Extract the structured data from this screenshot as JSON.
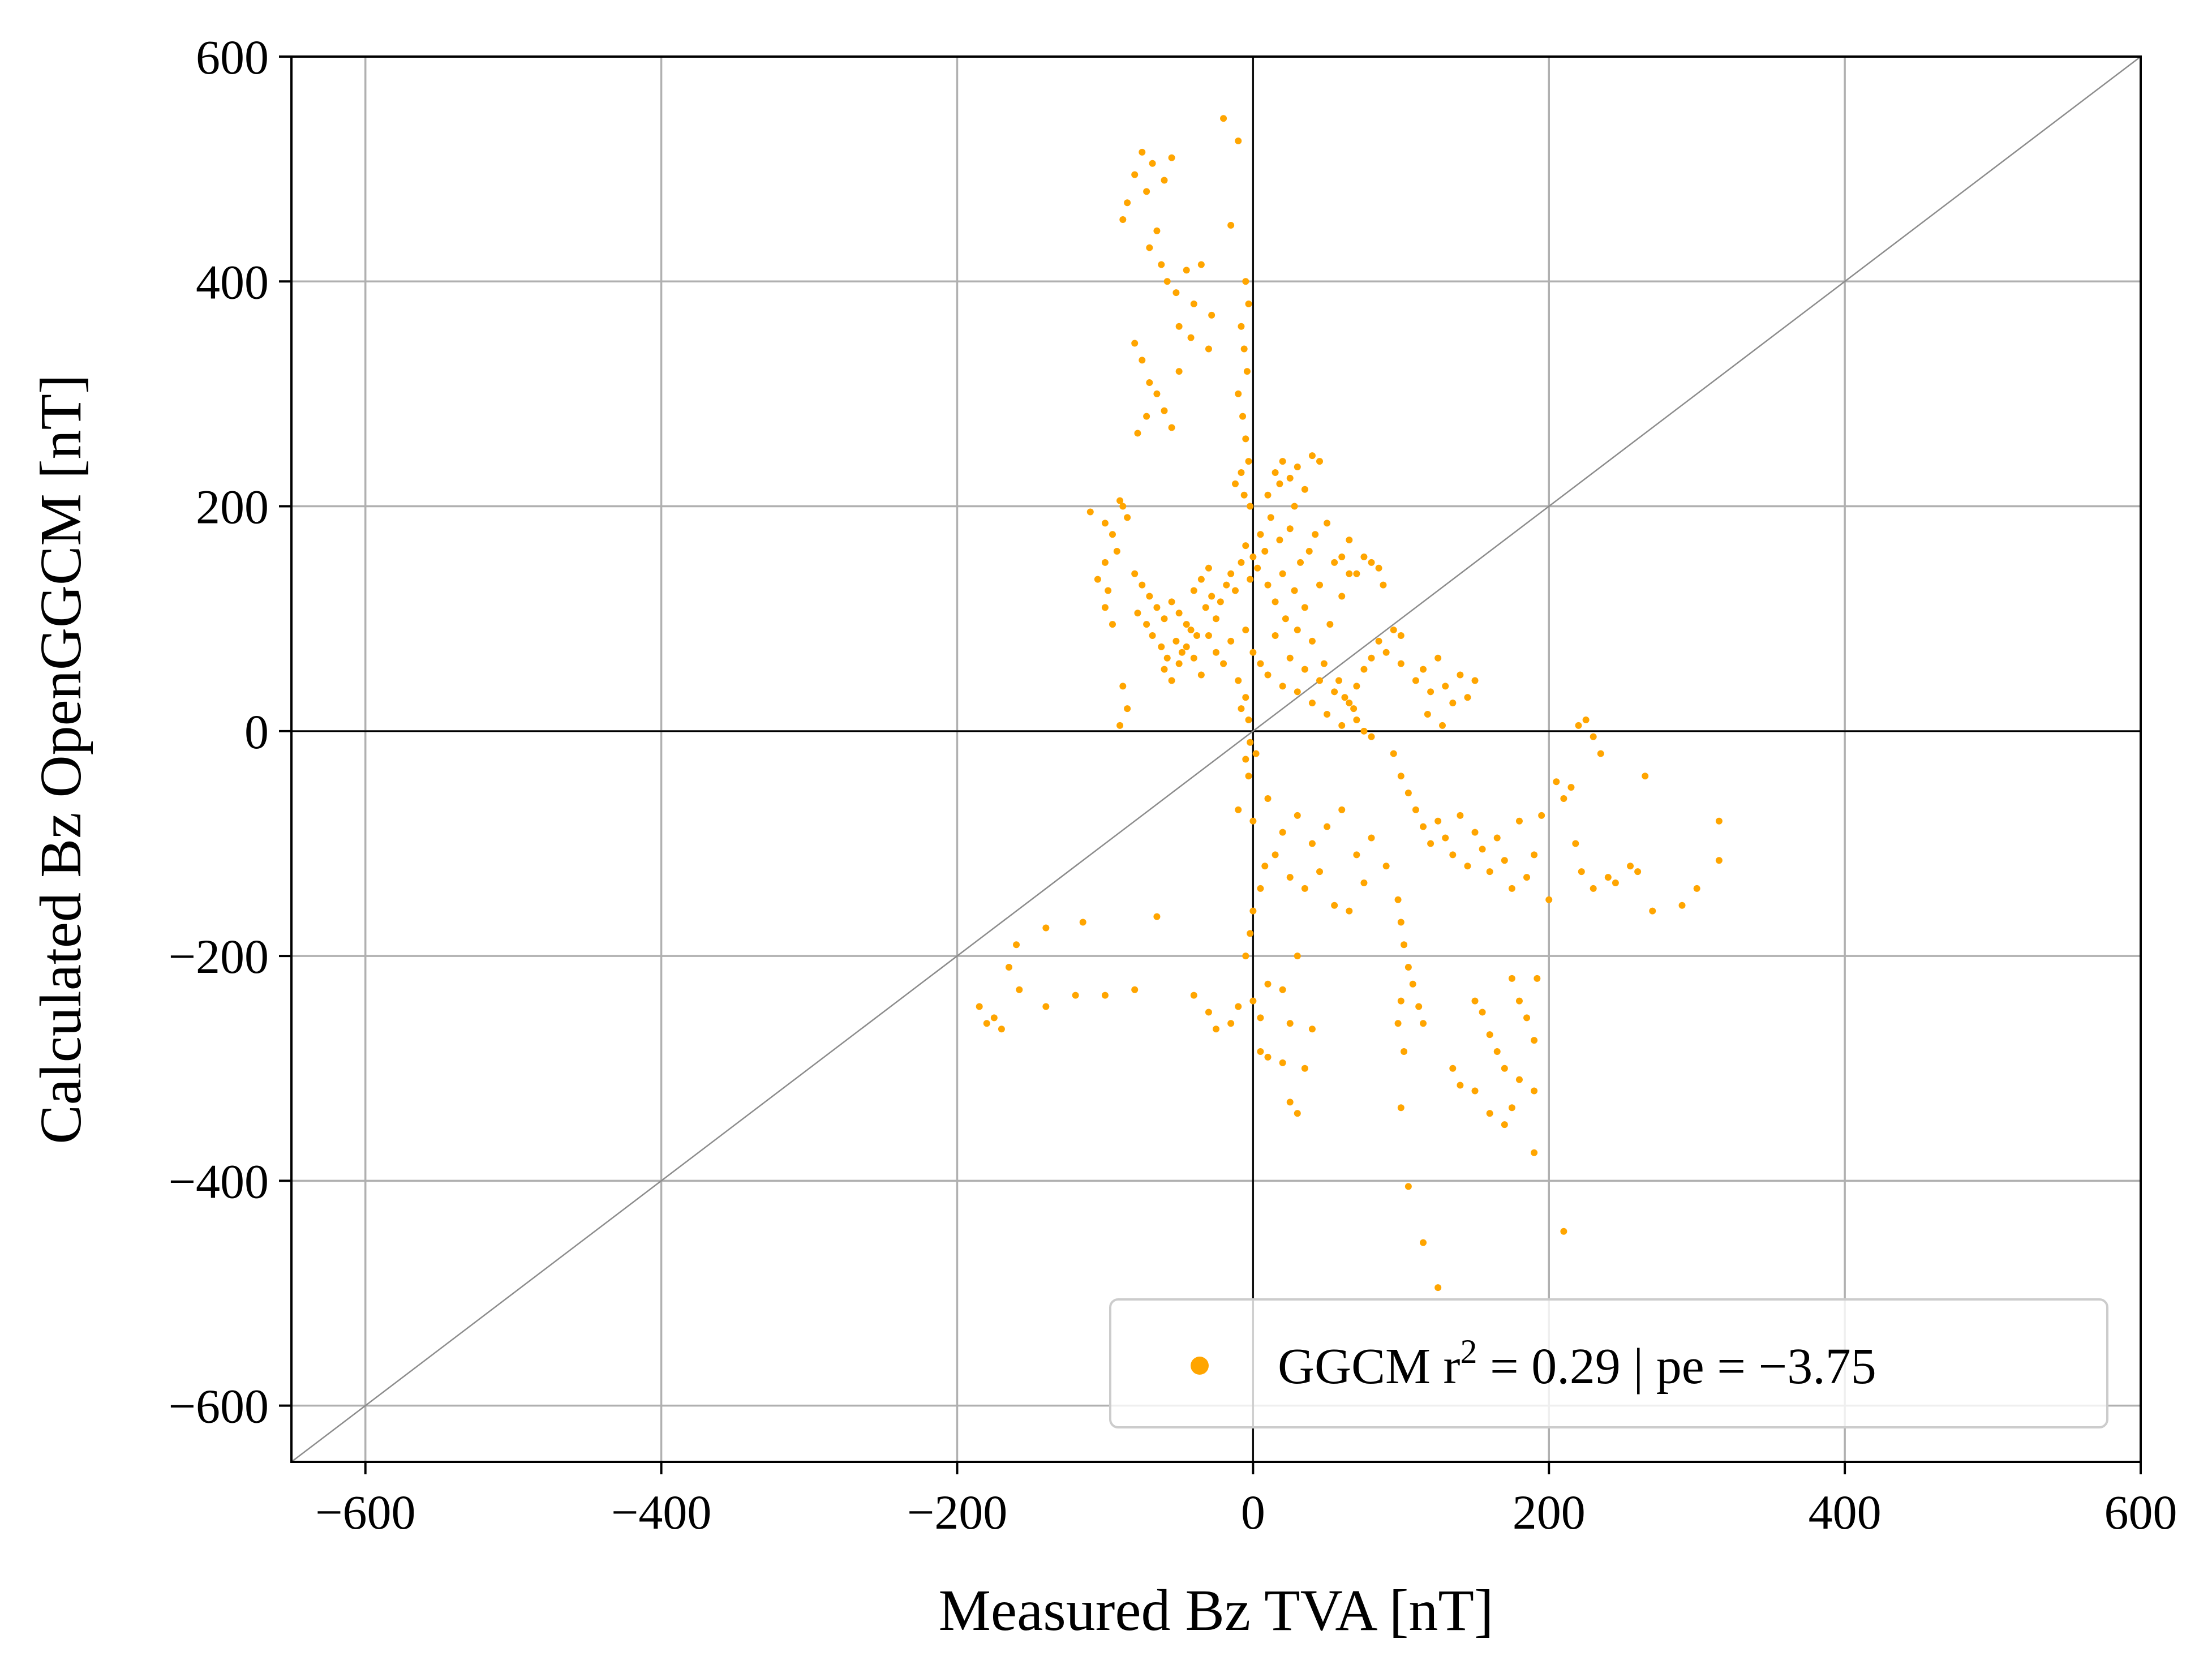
{
  "chart_data": {
    "type": "scatter",
    "title": "",
    "xlabel": "Measured Bz TVA [nT]",
    "ylabel": "Calculated Bz OpenGGCM [nT]",
    "xlim": [
      -650,
      600
    ],
    "ylim": [
      -650,
      600
    ],
    "xticks": [
      -600,
      -400,
      -200,
      0,
      200,
      400,
      600
    ],
    "yticks": [
      -600,
      -400,
      -200,
      0,
      200,
      400,
      600
    ],
    "xtick_labels": [
      "−600",
      "−400",
      "−200",
      "0",
      "200",
      "400",
      "600"
    ],
    "ytick_labels": [
      "−600",
      "−400",
      "−200",
      "0",
      "200",
      "400",
      "600"
    ],
    "grid": true,
    "zero_lines": true,
    "reference_line": "y = x",
    "legend_position": "lower right",
    "legend": {
      "marker_color": "#FFA500",
      "label_prefix": "GGCM r",
      "label_superscript": "2",
      "label_suffix": " = 0.29 | pe = −3.75"
    },
    "marker_color": "#FFA500",
    "series": [
      {
        "name": "GGCM r² = 0.29 | pe = −3.75",
        "points": [
          [
            -75,
            515
          ],
          [
            -68,
            505
          ],
          [
            -80,
            495
          ],
          [
            -72,
            480
          ],
          [
            -85,
            470
          ],
          [
            -60,
            490
          ],
          [
            -88,
            455
          ],
          [
            -65,
            445
          ],
          [
            -55,
            510
          ],
          [
            -20,
            545
          ],
          [
            -10,
            525
          ],
          [
            -15,
            450
          ],
          [
            -70,
            430
          ],
          [
            -62,
            415
          ],
          [
            -58,
            400
          ],
          [
            -52,
            390
          ],
          [
            -45,
            410
          ],
          [
            -40,
            380
          ],
          [
            -35,
            415
          ],
          [
            -28,
            370
          ],
          [
            -50,
            360
          ],
          [
            -42,
            350
          ],
          [
            -30,
            340
          ],
          [
            -80,
            345
          ],
          [
            -75,
            330
          ],
          [
            -70,
            310
          ],
          [
            -65,
            300
          ],
          [
            -60,
            285
          ],
          [
            -72,
            280
          ],
          [
            -78,
            265
          ],
          [
            -55,
            270
          ],
          [
            -50,
            320
          ],
          [
            -5,
            400
          ],
          [
            -3,
            380
          ],
          [
            -8,
            360
          ],
          [
            -6,
            340
          ],
          [
            -4,
            320
          ],
          [
            -10,
            300
          ],
          [
            -7,
            280
          ],
          [
            -5,
            260
          ],
          [
            -3,
            240
          ],
          [
            -8,
            230
          ],
          [
            -12,
            220
          ],
          [
            -6,
            210
          ],
          [
            -2,
            200
          ],
          [
            -110,
            195
          ],
          [
            -100,
            185
          ],
          [
            -95,
            175
          ],
          [
            -88,
            200
          ],
          [
            -92,
            160
          ],
          [
            -100,
            150
          ],
          [
            -105,
            135
          ],
          [
            -98,
            125
          ],
          [
            -90,
            205
          ],
          [
            -85,
            190
          ],
          [
            -100,
            110
          ],
          [
            -95,
            95
          ],
          [
            -88,
            40
          ],
          [
            -85,
            20
          ],
          [
            -90,
            5
          ],
          [
            -80,
            140
          ],
          [
            -75,
            130
          ],
          [
            -70,
            120
          ],
          [
            -65,
            110
          ],
          [
            -60,
            100
          ],
          [
            -55,
            115
          ],
          [
            -50,
            105
          ],
          [
            -45,
            95
          ],
          [
            -40,
            125
          ],
          [
            -35,
            135
          ],
          [
            -30,
            145
          ],
          [
            -78,
            105
          ],
          [
            -72,
            95
          ],
          [
            -68,
            85
          ],
          [
            -62,
            75
          ],
          [
            -58,
            65
          ],
          [
            -52,
            80
          ],
          [
            -48,
            70
          ],
          [
            -42,
            90
          ],
          [
            -38,
            85
          ],
          [
            -32,
            110
          ],
          [
            -28,
            120
          ],
          [
            -25,
            100
          ],
          [
            -22,
            115
          ],
          [
            -18,
            130
          ],
          [
            -15,
            140
          ],
          [
            -12,
            125
          ],
          [
            -8,
            150
          ],
          [
            -5,
            165
          ],
          [
            -2,
            135
          ],
          [
            0,
            155
          ],
          [
            3,
            145
          ],
          [
            5,
            175
          ],
          [
            8,
            160
          ],
          [
            10,
            130
          ],
          [
            12,
            190
          ],
          [
            15,
            115
          ],
          [
            18,
            170
          ],
          [
            20,
            140
          ],
          [
            22,
            100
          ],
          [
            25,
            180
          ],
          [
            28,
            125
          ],
          [
            30,
            90
          ],
          [
            32,
            150
          ],
          [
            35,
            110
          ],
          [
            38,
            160
          ],
          [
            40,
            80
          ],
          [
            42,
            175
          ],
          [
            45,
            130
          ],
          [
            48,
            60
          ],
          [
            50,
            185
          ],
          [
            52,
            95
          ],
          [
            55,
            150
          ],
          [
            58,
            45
          ],
          [
            60,
            120
          ],
          [
            62,
            30
          ],
          [
            65,
            170
          ],
          [
            68,
            20
          ],
          [
            15,
            230
          ],
          [
            20,
            240
          ],
          [
            25,
            225
          ],
          [
            30,
            235
          ],
          [
            35,
            215
          ],
          [
            40,
            245
          ],
          [
            45,
            240
          ],
          [
            10,
            210
          ],
          [
            28,
            200
          ],
          [
            18,
            220
          ],
          [
            -60,
            55
          ],
          [
            -55,
            45
          ],
          [
            -50,
            60
          ],
          [
            -45,
            75
          ],
          [
            -40,
            65
          ],
          [
            -35,
            50
          ],
          [
            -30,
            85
          ],
          [
            -25,
            70
          ],
          [
            -20,
            60
          ],
          [
            -15,
            80
          ],
          [
            -10,
            45
          ],
          [
            -5,
            90
          ],
          [
            0,
            70
          ],
          [
            5,
            60
          ],
          [
            10,
            50
          ],
          [
            15,
            85
          ],
          [
            20,
            40
          ],
          [
            25,
            65
          ],
          [
            30,
            35
          ],
          [
            35,
            55
          ],
          [
            40,
            25
          ],
          [
            45,
            45
          ],
          [
            50,
            15
          ],
          [
            55,
            35
          ],
          [
            60,
            5
          ],
          [
            65,
            25
          ],
          [
            70,
            10
          ],
          [
            75,
            0
          ],
          [
            80,
            -5
          ],
          [
            70,
            40
          ],
          [
            75,
            55
          ],
          [
            80,
            65
          ],
          [
            85,
            80
          ],
          [
            90,
            70
          ],
          [
            95,
            90
          ],
          [
            100,
            85
          ],
          [
            70,
            140
          ],
          [
            75,
            155
          ],
          [
            80,
            150
          ],
          [
            85,
            145
          ],
          [
            88,
            130
          ],
          [
            60,
            155
          ],
          [
            65,
            140
          ],
          [
            -5,
            30
          ],
          [
            -3,
            10
          ],
          [
            -2,
            -10
          ],
          [
            -5,
            -25
          ],
          [
            -3,
            -40
          ],
          [
            2,
            -20
          ],
          [
            -8,
            20
          ],
          [
            100,
            60
          ],
          [
            110,
            45
          ],
          [
            115,
            55
          ],
          [
            120,
            35
          ],
          [
            125,
            65
          ],
          [
            130,
            40
          ],
          [
            135,
            25
          ],
          [
            140,
            50
          ],
          [
            145,
            30
          ],
          [
            150,
            45
          ],
          [
            118,
            15
          ],
          [
            128,
            5
          ],
          [
            95,
            -20
          ],
          [
            100,
            -40
          ],
          [
            105,
            -55
          ],
          [
            110,
            -70
          ],
          [
            115,
            -85
          ],
          [
            120,
            -100
          ],
          [
            125,
            -80
          ],
          [
            130,
            -95
          ],
          [
            135,
            -110
          ],
          [
            140,
            -75
          ],
          [
            145,
            -120
          ],
          [
            150,
            -90
          ],
          [
            155,
            -105
          ],
          [
            160,
            -125
          ],
          [
            165,
            -95
          ],
          [
            170,
            -115
          ],
          [
            175,
            -140
          ],
          [
            180,
            -80
          ],
          [
            185,
            -130
          ],
          [
            190,
            -110
          ],
          [
            195,
            -75
          ],
          [
            200,
            -150
          ],
          [
            205,
            -45
          ],
          [
            210,
            -60
          ],
          [
            215,
            -50
          ],
          [
            220,
            5
          ],
          [
            225,
            10
          ],
          [
            230,
            -5
          ],
          [
            235,
            -20
          ],
          [
            218,
            -100
          ],
          [
            222,
            -125
          ],
          [
            230,
            -140
          ],
          [
            240,
            -130
          ],
          [
            245,
            -135
          ],
          [
            255,
            -120
          ],
          [
            260,
            -125
          ],
          [
            265,
            -40
          ],
          [
            270,
            -160
          ],
          [
            290,
            -155
          ],
          [
            300,
            -140
          ],
          [
            315,
            -80
          ],
          [
            315,
            -115
          ],
          [
            -10,
            -70
          ],
          [
            0,
            -80
          ],
          [
            10,
            -60
          ],
          [
            20,
            -90
          ],
          [
            30,
            -75
          ],
          [
            40,
            -100
          ],
          [
            50,
            -85
          ],
          [
            60,
            -70
          ],
          [
            70,
            -110
          ],
          [
            80,
            -95
          ],
          [
            90,
            -120
          ],
          [
            15,
            -110
          ],
          [
            25,
            -130
          ],
          [
            35,
            -140
          ],
          [
            45,
            -125
          ],
          [
            55,
            -155
          ],
          [
            65,
            -160
          ],
          [
            75,
            -135
          ],
          [
            98,
            -150
          ],
          [
            100,
            -170
          ],
          [
            102,
            -190
          ],
          [
            105,
            -210
          ],
          [
            100,
            -240
          ],
          [
            108,
            -225
          ],
          [
            112,
            -245
          ],
          [
            115,
            -260
          ],
          [
            98,
            -260
          ],
          [
            102,
            -285
          ],
          [
            -185,
            -245
          ],
          [
            -180,
            -260
          ],
          [
            -175,
            -255
          ],
          [
            -170,
            -265
          ],
          [
            -165,
            -210
          ],
          [
            -160,
            -190
          ],
          [
            -158,
            -230
          ],
          [
            -140,
            -175
          ],
          [
            -115,
            -170
          ],
          [
            -140,
            -245
          ],
          [
            -120,
            -235
          ],
          [
            -100,
            -235
          ],
          [
            -80,
            -230
          ],
          [
            -65,
            -165
          ],
          [
            -40,
            -235
          ],
          [
            -30,
            -250
          ],
          [
            -25,
            -265
          ],
          [
            -15,
            -260
          ],
          [
            -10,
            -245
          ],
          [
            0,
            -240
          ],
          [
            5,
            -255
          ],
          [
            10,
            -225
          ],
          [
            20,
            -230
          ],
          [
            25,
            -260
          ],
          [
            -5,
            -200
          ],
          [
            -2,
            -180
          ],
          [
            0,
            -160
          ],
          [
            5,
            -140
          ],
          [
            8,
            -120
          ],
          [
            5,
            -285
          ],
          [
            10,
            -290
          ],
          [
            20,
            -295
          ],
          [
            25,
            -330
          ],
          [
            30,
            -340
          ],
          [
            35,
            -300
          ],
          [
            40,
            -265
          ],
          [
            30,
            -200
          ],
          [
            135,
            -300
          ],
          [
            140,
            -315
          ],
          [
            150,
            -320
          ],
          [
            160,
            -340
          ],
          [
            170,
            -350
          ],
          [
            175,
            -335
          ],
          [
            180,
            -310
          ],
          [
            190,
            -320
          ],
          [
            190,
            -375
          ],
          [
            105,
            -405
          ],
          [
            115,
            -455
          ],
          [
            125,
            -495
          ],
          [
            210,
            -445
          ],
          [
            100,
            -335
          ],
          [
            150,
            -240
          ],
          [
            155,
            -250
          ],
          [
            160,
            -270
          ],
          [
            165,
            -285
          ],
          [
            170,
            -300
          ],
          [
            175,
            -220
          ],
          [
            180,
            -240
          ],
          [
            185,
            -255
          ],
          [
            190,
            -275
          ],
          [
            192,
            -220
          ]
        ]
      }
    ]
  }
}
